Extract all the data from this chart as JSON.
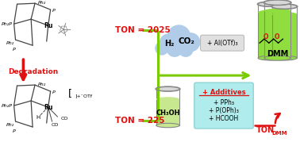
{
  "bg_color": "#ffffff",
  "red": "#e01010",
  "bright_green": "#7acc00",
  "ton_2025": "TON = 2025",
  "ton_225": "TON = 225",
  "degradation": "Degradation",
  "cloud_color": "#b0cce8",
  "beaker_green": "#90dd40",
  "beaker_green_dark": "#78bb30",
  "beaker_rim": "#c8e8a0",
  "ch3oh_green": "#c8e890",
  "cyan_box": "#b0ecec",
  "gray_box": "#d8d8d8",
  "al_otf_box": "#e0e0e0"
}
